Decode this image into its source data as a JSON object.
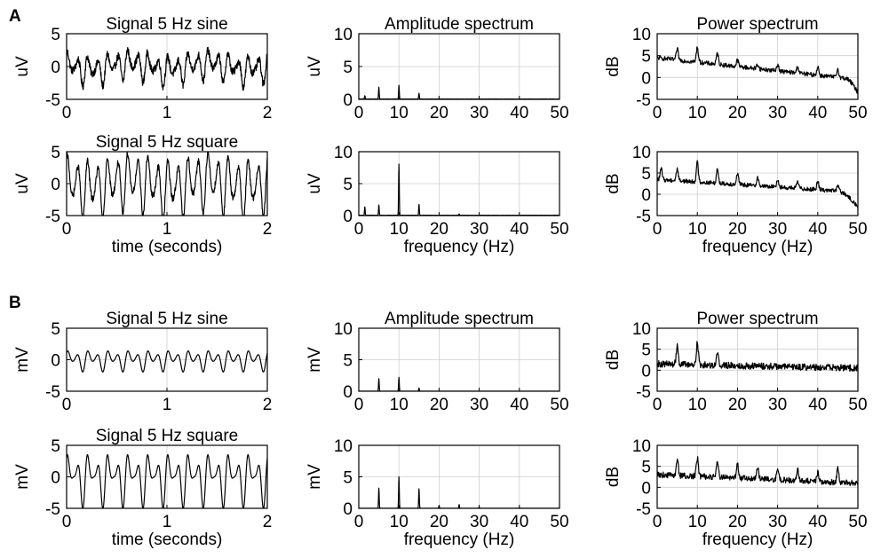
{
  "figure": {
    "panels": [
      {
        "label": "A",
        "unit": "uV"
      },
      {
        "label": "B",
        "unit": "mV"
      }
    ]
  },
  "chart_data": [
    {
      "id": "A-sine-time",
      "panel": "A",
      "type": "line",
      "title": "Signal 5 Hz sine",
      "xlabel": "",
      "ylabel": "uV",
      "xlim": [
        0,
        2
      ],
      "ylim": [
        -5,
        5
      ],
      "xticks": [
        0,
        1,
        2
      ],
      "yticks": [
        -5,
        0,
        5
      ],
      "grid": true,
      "series": [
        {
          "kind": "signal",
          "freqs": [
            5,
            10,
            15,
            1.3
          ],
          "amps": [
            0.6,
            1.6,
            0.5,
            0.5
          ],
          "noise": 0.6
        }
      ]
    },
    {
      "id": "A-sine-amp",
      "panel": "A",
      "type": "line",
      "title": "Amplitude spectrum",
      "xlabel": "",
      "ylabel": "uV",
      "xlim": [
        0,
        50
      ],
      "ylim": [
        0,
        10
      ],
      "xticks": [
        0,
        10,
        20,
        30,
        40,
        50
      ],
      "yticks": [
        0,
        5,
        10
      ],
      "grid": true,
      "series": [
        {
          "kind": "amplitude",
          "floor": 0.05,
          "peaks": [
            [
              1.5,
              0.5
            ],
            [
              5,
              1.8
            ],
            [
              10,
              2.1
            ],
            [
              15,
              0.9
            ]
          ]
        }
      ]
    },
    {
      "id": "A-sine-power",
      "panel": "A",
      "type": "line",
      "title": "Power spectrum",
      "xlabel": "",
      "ylabel": "dB",
      "xlim": [
        0,
        50
      ],
      "ylim": [
        -5,
        10
      ],
      "xticks": [
        0,
        10,
        20,
        30,
        40,
        50
      ],
      "yticks": [
        -5,
        0,
        5,
        10
      ],
      "grid": true,
      "series": [
        {
          "kind": "power",
          "start": 4.5,
          "end": -0.5,
          "drop_at": 47,
          "drop_to": -3.5,
          "noise": 0.5,
          "peaks": [
            [
              5,
              6.5
            ],
            [
              10,
              7
            ],
            [
              15,
              5.5
            ],
            [
              20,
              4
            ],
            [
              25,
              3
            ],
            [
              30,
              3
            ],
            [
              35,
              2.5
            ],
            [
              40,
              2.5
            ],
            [
              45,
              2
            ]
          ]
        }
      ]
    },
    {
      "id": "A-square-time",
      "panel": "A",
      "type": "line",
      "title": "Signal 5 Hz square",
      "xlabel": "time (seconds)",
      "ylabel": "uV",
      "xlim": [
        0,
        2
      ],
      "ylim": [
        -5,
        5
      ],
      "xticks": [
        0,
        1,
        2
      ],
      "yticks": [
        -5,
        0,
        5
      ],
      "grid": true,
      "series": [
        {
          "kind": "signal",
          "freqs": [
            5,
            10,
            15,
            1.3
          ],
          "amps": [
            1.0,
            3.5,
            0.8,
            0.6
          ],
          "noise": 0.5
        }
      ]
    },
    {
      "id": "A-square-amp",
      "panel": "A",
      "type": "line",
      "title": "",
      "xlabel": "frequency (Hz)",
      "ylabel": "uV",
      "xlim": [
        0,
        50
      ],
      "ylim": [
        0,
        10
      ],
      "xticks": [
        0,
        10,
        20,
        30,
        40,
        50
      ],
      "yticks": [
        0,
        5,
        10
      ],
      "grid": true,
      "series": [
        {
          "kind": "amplitude",
          "floor": 0.05,
          "peaks": [
            [
              1.5,
              1.3
            ],
            [
              5,
              1.6
            ],
            [
              10,
              8
            ],
            [
              15,
              1.7
            ],
            [
              25,
              0.2
            ]
          ]
        }
      ]
    },
    {
      "id": "A-square-power",
      "panel": "A",
      "type": "line",
      "title": "",
      "xlabel": "frequency (Hz)",
      "ylabel": "dB",
      "xlim": [
        0,
        50
      ],
      "ylim": [
        -5,
        10
      ],
      "xticks": [
        0,
        10,
        20,
        30,
        40,
        50
      ],
      "yticks": [
        -5,
        0,
        5,
        10
      ],
      "grid": true,
      "series": [
        {
          "kind": "power",
          "start": 3.5,
          "end": 0.5,
          "drop_at": 45,
          "drop_to": -3,
          "noise": 0.5,
          "peaks": [
            [
              1,
              6
            ],
            [
              5,
              6
            ],
            [
              10,
              7.5
            ],
            [
              15,
              6
            ],
            [
              20,
              5
            ],
            [
              25,
              4
            ],
            [
              30,
              3.5
            ],
            [
              35,
              3
            ],
            [
              40,
              3
            ],
            [
              45,
              2
            ]
          ]
        }
      ]
    },
    {
      "id": "B-sine-time",
      "panel": "B",
      "type": "line",
      "title": "Signal 5 Hz sine",
      "xlabel": "",
      "ylabel": "mV",
      "xlim": [
        0,
        2
      ],
      "ylim": [
        -5,
        5
      ],
      "xticks": [
        0,
        1,
        2
      ],
      "yticks": [
        -5,
        0,
        5
      ],
      "grid": true,
      "series": [
        {
          "kind": "signal",
          "freqs": [
            5,
            10,
            15,
            1.3
          ],
          "amps": [
            0.7,
            1.1,
            0.2,
            0.0
          ],
          "noise": 0.0
        }
      ]
    },
    {
      "id": "B-sine-amp",
      "panel": "B",
      "type": "line",
      "title": "Amplitude spectrum",
      "xlabel": "",
      "ylabel": "mV",
      "xlim": [
        0,
        50
      ],
      "ylim": [
        0,
        10
      ],
      "xticks": [
        0,
        10,
        20,
        30,
        40,
        50
      ],
      "yticks": [
        0,
        5,
        10
      ],
      "grid": true,
      "series": [
        {
          "kind": "amplitude",
          "floor": 0.0,
          "peaks": [
            [
              5,
              2.0
            ],
            [
              10,
              2.2
            ],
            [
              15,
              0.5
            ]
          ]
        }
      ]
    },
    {
      "id": "B-sine-power",
      "panel": "B",
      "type": "line",
      "title": "Power spectrum",
      "xlabel": "",
      "ylabel": "dB",
      "xlim": [
        0,
        50
      ],
      "ylim": [
        -5,
        10
      ],
      "xticks": [
        0,
        10,
        20,
        30,
        40,
        50
      ],
      "yticks": [
        -5,
        0,
        5,
        10
      ],
      "grid": true,
      "series": [
        {
          "kind": "power",
          "start": 1.5,
          "end": 0.5,
          "drop_at": 60,
          "drop_to": 0,
          "noise": 0.8,
          "peaks": [
            [
              5,
              6
            ],
            [
              10,
              6.5
            ],
            [
              15,
              4
            ]
          ]
        }
      ]
    },
    {
      "id": "B-square-time",
      "panel": "B",
      "type": "line",
      "title": "Signal 5 Hz square",
      "xlabel": "time (seconds)",
      "ylabel": "mV",
      "xlim": [
        0,
        2
      ],
      "ylim": [
        -5,
        5
      ],
      "xticks": [
        0,
        1,
        2
      ],
      "yticks": [
        -5,
        0,
        5
      ],
      "grid": true,
      "series": [
        {
          "kind": "signal",
          "freqs": [
            5,
            10,
            15,
            1.3
          ],
          "amps": [
            1.6,
            2.6,
            1.0,
            0.0
          ],
          "noise": 0.0
        }
      ]
    },
    {
      "id": "B-square-amp",
      "panel": "B",
      "type": "line",
      "title": "",
      "xlabel": "frequency (Hz)",
      "ylabel": "mV",
      "xlim": [
        0,
        50
      ],
      "ylim": [
        0,
        10
      ],
      "xticks": [
        0,
        10,
        20,
        30,
        40,
        50
      ],
      "yticks": [
        0,
        5,
        10
      ],
      "grid": true,
      "series": [
        {
          "kind": "amplitude",
          "floor": 0.0,
          "peaks": [
            [
              5,
              3.2
            ],
            [
              10,
              5
            ],
            [
              15,
              3.1
            ],
            [
              20,
              0.4
            ],
            [
              25,
              0.6
            ],
            [
              30,
              0.2
            ],
            [
              40,
              0.1
            ]
          ]
        }
      ]
    },
    {
      "id": "B-square-power",
      "panel": "B",
      "type": "line",
      "title": "",
      "xlabel": "frequency (Hz)",
      "ylabel": "dB",
      "xlim": [
        0,
        50
      ],
      "ylim": [
        -5,
        10
      ],
      "xticks": [
        0,
        10,
        20,
        30,
        40,
        50
      ],
      "yticks": [
        -5,
        0,
        5,
        10
      ],
      "grid": true,
      "series": [
        {
          "kind": "power",
          "start": 3,
          "end": 1,
          "drop_at": 60,
          "drop_to": 1,
          "noise": 0.7,
          "peaks": [
            [
              5,
              6.5
            ],
            [
              10,
              7
            ],
            [
              15,
              6.5
            ],
            [
              20,
              5.5
            ],
            [
              25,
              5
            ],
            [
              30,
              4.5
            ],
            [
              35,
              4
            ],
            [
              40,
              3.5
            ],
            [
              45,
              4.5
            ]
          ]
        }
      ]
    }
  ]
}
